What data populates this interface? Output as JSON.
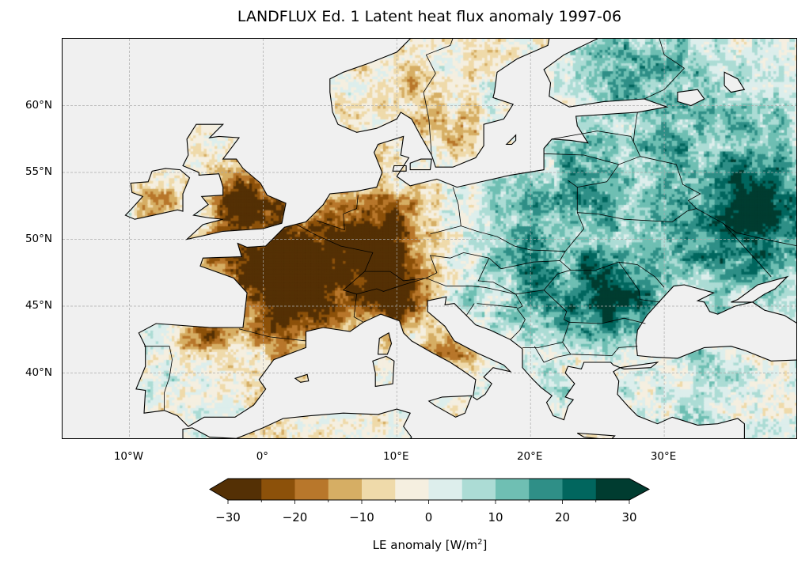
{
  "title": "LANDFLUX Ed. 1 Latent heat flux anomaly 1997-06",
  "map": {
    "extent_lon": [
      -15,
      40
    ],
    "extent_lat": [
      35,
      65
    ],
    "ocean_color": "#f0f0f0",
    "y_ticks": [
      {
        "value": 60,
        "label": "60°N"
      },
      {
        "value": 55,
        "label": "55°N"
      },
      {
        "value": 50,
        "label": "50°N"
      },
      {
        "value": 45,
        "label": "45°N"
      },
      {
        "value": 40,
        "label": "40°N"
      }
    ],
    "x_ticks": [
      {
        "value": -10,
        "label": "10°W"
      },
      {
        "value": 0,
        "label": "0°"
      },
      {
        "value": 10,
        "label": "10°E"
      },
      {
        "value": 20,
        "label": "20°E"
      },
      {
        "value": 30,
        "label": "30°E"
      }
    ]
  },
  "colorbar": {
    "label_main": "LE anomaly [W/m",
    "label_sup": "2",
    "label_end": "]",
    "range": [
      -30,
      30
    ],
    "step": 5,
    "extend": "both",
    "colors": [
      "#543005",
      "#8c510a",
      "#b8772b",
      "#d6ae64",
      "#efdaaa",
      "#f5efe0",
      "#ddeeec",
      "#acdcd5",
      "#6fbfb3",
      "#2f8f87",
      "#01665e",
      "#003c30"
    ],
    "ticks": [
      {
        "value": -30,
        "label": "−30"
      },
      {
        "value": -20,
        "label": "−20"
      },
      {
        "value": -10,
        "label": "−10"
      },
      {
        "value": 0,
        "label": "0"
      },
      {
        "value": 10,
        "label": "10"
      },
      {
        "value": 20,
        "label": "20"
      },
      {
        "value": 30,
        "label": "30"
      }
    ]
  }
}
